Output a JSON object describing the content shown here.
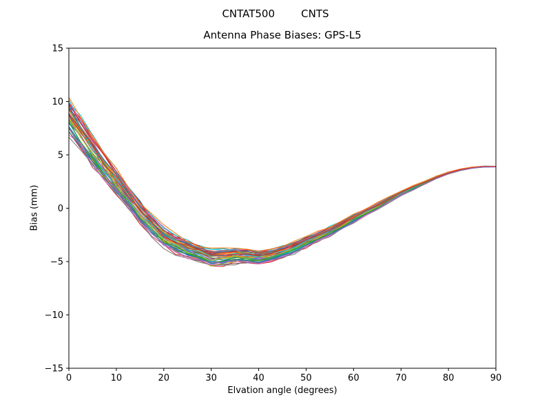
{
  "chart_data": {
    "type": "line",
    "suptitle": "CNTAT500        CNTS",
    "title": "Antenna Phase Biases: GPS-L5",
    "xlabel": "Elvation angle (degrees)",
    "ylabel": "Bias (mm)",
    "xlim": [
      0,
      90
    ],
    "ylim": [
      -15,
      15
    ],
    "grid": false,
    "legend": "none",
    "xticks": [
      0,
      10,
      20,
      30,
      40,
      50,
      60,
      70,
      80,
      90
    ],
    "xtick_labels": [
      "0",
      "10",
      "20",
      "30",
      "40",
      "50",
      "60",
      "70",
      "80",
      "90"
    ],
    "yticks": [
      -15,
      -10,
      -5,
      0,
      5,
      10,
      15
    ],
    "ytick_labels": [
      "−15",
      "−10",
      "−5",
      "0",
      "5",
      "10",
      "15"
    ],
    "x": [
      0,
      2.5,
      5,
      7.5,
      10,
      12.5,
      15,
      17.5,
      20,
      22.5,
      25,
      27.5,
      30,
      32.5,
      35,
      37.5,
      40,
      42.5,
      45,
      47.5,
      50,
      52.5,
      55,
      57.5,
      60,
      62.5,
      65,
      67.5,
      70,
      72.5,
      75,
      77.5,
      80,
      82.5,
      85,
      87.5,
      90
    ],
    "base_values": [
      8.5,
      6.9,
      5.3,
      3.8,
      2.4,
      1.0,
      -0.4,
      -1.7,
      -2.7,
      -3.4,
      -3.9,
      -4.3,
      -4.7,
      -4.6,
      -4.5,
      -4.5,
      -4.6,
      -4.4,
      -4.1,
      -3.7,
      -3.2,
      -2.7,
      -2.2,
      -1.6,
      -1.0,
      -0.4,
      0.2,
      0.8,
      1.4,
      1.9,
      2.4,
      2.9,
      3.3,
      3.6,
      3.8,
      3.9,
      3.9
    ],
    "spread_envelope": [
      1.5,
      1.4,
      1.3,
      1.2,
      1.1,
      1.0,
      0.95,
      0.9,
      0.85,
      0.8,
      0.78,
      0.75,
      0.72,
      0.7,
      0.65,
      0.6,
      0.58,
      0.55,
      0.5,
      0.48,
      0.45,
      0.42,
      0.4,
      0.36,
      0.33,
      0.3,
      0.27,
      0.24,
      0.2,
      0.17,
      0.14,
      0.11,
      0.09,
      0.07,
      0.05,
      0.04,
      0.03
    ],
    "series_offsets": [
      0.95,
      -0.6,
      0.3,
      -1.0,
      0.7,
      0.1,
      -0.35,
      0.55,
      -0.8,
      1.05,
      -0.15,
      0.45,
      -0.5,
      0.85,
      0.0,
      -0.9,
      0.25,
      0.65,
      -0.25,
      1.0,
      -0.7,
      0.4,
      -0.05,
      0.75,
      -0.45,
      0.15,
      0.9,
      -1.05,
      0.5,
      -0.3,
      0.6,
      0.05,
      -0.55,
      0.8,
      -0.2,
      0.35,
      -0.85,
      0.7,
      -0.1,
      0.2,
      -0.65,
      1.1,
      -0.4,
      0.3,
      -0.75
    ],
    "colors": [
      "#1f77b4",
      "#ff7f0e",
      "#2ca02c",
      "#d62728",
      "#9467bd",
      "#8c564b",
      "#e377c2",
      "#7f7f7f",
      "#bcbd22",
      "#17becf"
    ]
  }
}
